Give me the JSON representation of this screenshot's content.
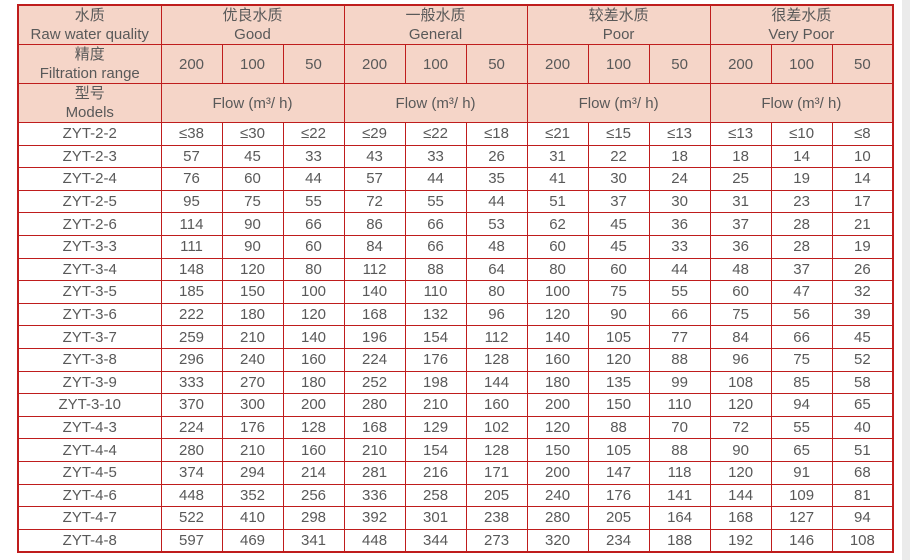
{
  "page": {
    "background": "#ffffff",
    "right_strip_color": "#ebebeb"
  },
  "table": {
    "colors": {
      "border": "#bf1d1d",
      "header_bg": "#f5d5c8",
      "text": "#595959",
      "row_bg": "#ffffff"
    },
    "header": {
      "raw_water_quality": {
        "zh": "水质",
        "en": "Raw water quality"
      },
      "filtration_range": {
        "zh": "精度",
        "en": "Filtration range"
      },
      "models": {
        "zh": "型号",
        "en": "Models"
      },
      "groups": [
        {
          "zh": "优良水质",
          "en": "Good"
        },
        {
          "zh": "一般水质",
          "en": "General"
        },
        {
          "zh": "较差水质",
          "en": "Poor"
        },
        {
          "zh": "很差水质",
          "en": "Very Poor"
        }
      ],
      "filtration_values": [
        "200",
        "100",
        "50"
      ],
      "flow_label": "Flow (m³/ h)"
    },
    "rows": [
      {
        "model": "ZYT-2-2",
        "values": [
          "≤38",
          "≤30",
          "≤22",
          "≤29",
          "≤22",
          "≤18",
          "≤21",
          "≤15",
          "≤13",
          "≤13",
          "≤10",
          "≤8"
        ]
      },
      {
        "model": "ZYT-2-3",
        "values": [
          "57",
          "45",
          "33",
          "43",
          "33",
          "26",
          "31",
          "22",
          "18",
          "18",
          "14",
          "10"
        ]
      },
      {
        "model": "ZYT-2-4",
        "values": [
          "76",
          "60",
          "44",
          "57",
          "44",
          "35",
          "41",
          "30",
          "24",
          "25",
          "19",
          "14"
        ]
      },
      {
        "model": "ZYT-2-5",
        "values": [
          "95",
          "75",
          "55",
          "72",
          "55",
          "44",
          "51",
          "37",
          "30",
          "31",
          "23",
          "17"
        ]
      },
      {
        "model": "ZYT-2-6",
        "values": [
          "114",
          "90",
          "66",
          "86",
          "66",
          "53",
          "62",
          "45",
          "36",
          "37",
          "28",
          "21"
        ]
      },
      {
        "model": "ZYT-3-3",
        "values": [
          "111",
          "90",
          "60",
          "84",
          "66",
          "48",
          "60",
          "45",
          "33",
          "36",
          "28",
          "19"
        ]
      },
      {
        "model": "ZYT-3-4",
        "values": [
          "148",
          "120",
          "80",
          "112",
          "88",
          "64",
          "80",
          "60",
          "44",
          "48",
          "37",
          "26"
        ]
      },
      {
        "model": "ZYT-3-5",
        "values": [
          "185",
          "150",
          "100",
          "140",
          "110",
          "80",
          "100",
          "75",
          "55",
          "60",
          "47",
          "32"
        ]
      },
      {
        "model": "ZYT-3-6",
        "values": [
          "222",
          "180",
          "120",
          "168",
          "132",
          "96",
          "120",
          "90",
          "66",
          "75",
          "56",
          "39"
        ]
      },
      {
        "model": "ZYT-3-7",
        "values": [
          "259",
          "210",
          "140",
          "196",
          "154",
          "112",
          "140",
          "105",
          "77",
          "84",
          "66",
          "45"
        ]
      },
      {
        "model": "ZYT-3-8",
        "values": [
          "296",
          "240",
          "160",
          "224",
          "176",
          "128",
          "160",
          "120",
          "88",
          "96",
          "75",
          "52"
        ]
      },
      {
        "model": "ZYT-3-9",
        "values": [
          "333",
          "270",
          "180",
          "252",
          "198",
          "144",
          "180",
          "135",
          "99",
          "108",
          "85",
          "58"
        ]
      },
      {
        "model": "ZYT-3-10",
        "values": [
          "370",
          "300",
          "200",
          "280",
          "210",
          "160",
          "200",
          "150",
          "110",
          "120",
          "94",
          "65"
        ]
      },
      {
        "model": "ZYT-4-3",
        "values": [
          "224",
          "176",
          "128",
          "168",
          "129",
          "102",
          "120",
          "88",
          "70",
          "72",
          "55",
          "40"
        ]
      },
      {
        "model": "ZYT-4-4",
        "values": [
          "280",
          "210",
          "160",
          "210",
          "154",
          "128",
          "150",
          "105",
          "88",
          "90",
          "65",
          "51"
        ]
      },
      {
        "model": "ZYT-4-5",
        "values": [
          "374",
          "294",
          "214",
          "281",
          "216",
          "171",
          "200",
          "147",
          "118",
          "120",
          "91",
          "68"
        ]
      },
      {
        "model": "ZYT-4-6",
        "values": [
          "448",
          "352",
          "256",
          "336",
          "258",
          "205",
          "240",
          "176",
          "141",
          "144",
          "109",
          "81"
        ]
      },
      {
        "model": "ZYT-4-7",
        "values": [
          "522",
          "410",
          "298",
          "392",
          "301",
          "238",
          "280",
          "205",
          "164",
          "168",
          "127",
          "94"
        ]
      },
      {
        "model": "ZYT-4-8",
        "values": [
          "597",
          "469",
          "341",
          "448",
          "344",
          "273",
          "320",
          "234",
          "188",
          "192",
          "146",
          "108"
        ]
      }
    ]
  }
}
